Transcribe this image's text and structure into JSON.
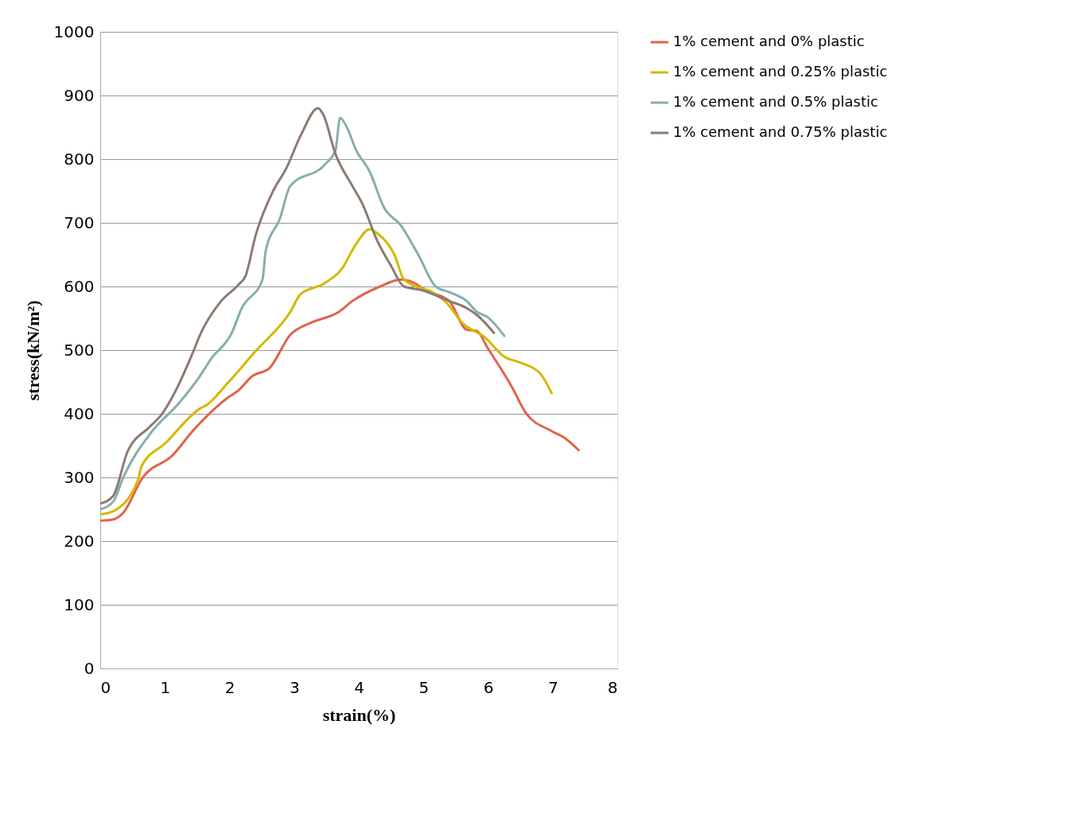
{
  "chart_data": {
    "type": "line",
    "xlabel": "strain(%)",
    "ylabel": "stress(kN/m²)",
    "xlim": [
      0,
      8
    ],
    "ylim": [
      0,
      1000
    ],
    "xticks": [
      0,
      1,
      2,
      3,
      4,
      5,
      6,
      7,
      8
    ],
    "yticks": [
      0,
      100,
      200,
      300,
      400,
      500,
      600,
      700,
      800,
      900,
      1000
    ],
    "grid": "y",
    "legend": "right",
    "marker": "none",
    "line_style": "solid",
    "series": [
      {
        "name": "1% cement and 0% plastic",
        "color": "#e0644a",
        "x": [
          0,
          0.2,
          0.36,
          0.65,
          1.12,
          1.44,
          1.97,
          2.13,
          2.35,
          2.62,
          2.94,
          3.26,
          3.69,
          3.9,
          4.33,
          4.65,
          4.87,
          5.03,
          5.4,
          5.67,
          5.83,
          5.99,
          6.37,
          6.58,
          6.96,
          7.17,
          7.41
        ],
        "values": [
          232,
          234,
          245,
          299,
          335,
          374,
          425,
          436,
          459,
          472,
          524,
          543,
          560,
          577,
          600,
          611,
          605,
          594,
          577,
          532,
          530,
          504,
          442,
          402,
          374,
          363,
          342
        ]
      },
      {
        "name": "1% cement and 0.25% plastic",
        "color": "#d4b800",
        "x": [
          0,
          0.2,
          0.58,
          0.64,
          1.01,
          1.54,
          1.65,
          1.97,
          2.4,
          2.94,
          3.1,
          3.47,
          3.74,
          3.96,
          4.17,
          4.28,
          4.55,
          4.7,
          5.19,
          5.35,
          5.62,
          5.94,
          6.26,
          6.48,
          6.8,
          6.99
        ],
        "values": [
          242,
          247,
          295,
          318,
          354,
          408,
          414,
          448,
          498,
          560,
          588,
          605,
          628,
          667,
          690,
          684,
          650,
          611,
          588,
          575,
          541,
          521,
          489,
          481,
          464,
          431
        ]
      },
      {
        "name": "1% cement and 0.5% plastic",
        "color": "#86aeac",
        "x": [
          0,
          0.2,
          0.36,
          0.79,
          1.22,
          1.54,
          1.72,
          2.03,
          2.19,
          2.51,
          2.56,
          2.78,
          2.94,
          3.47,
          3.64,
          3.71,
          3.8,
          3.96,
          4.17,
          4.39,
          4.65,
          4.92,
          5.19,
          5.4,
          5.67,
          5.83,
          5.99,
          6.26
        ],
        "values": [
          250,
          262,
          301,
          371,
          417,
          459,
          487,
          526,
          566,
          611,
          656,
          707,
          758,
          791,
          814,
          865,
          853,
          814,
          780,
          724,
          696,
          650,
          600,
          591,
          577,
          560,
          552,
          521
        ]
      },
      {
        "name": "1% cement and 0.75% plastic",
        "color": "#8c7b72",
        "x": [
          0,
          0.2,
          0.42,
          0.77,
          0.95,
          1.14,
          1.44,
          1.54,
          1.87,
          2.13,
          2.25,
          2.4,
          2.67,
          2.88,
          3.1,
          3.37,
          3.45,
          3.64,
          3.9,
          4.06,
          4.28,
          4.49,
          4.7,
          4.98,
          5.4,
          5.67,
          5.83,
          6.1
        ],
        "values": [
          259,
          271,
          340,
          380,
          399,
          431,
          498,
          523,
          577,
          602,
          617,
          679,
          749,
          786,
          837,
          880,
          870,
          808,
          758,
          729,
          673,
          634,
          600,
          594,
          577,
          566,
          555,
          526
        ]
      }
    ]
  }
}
